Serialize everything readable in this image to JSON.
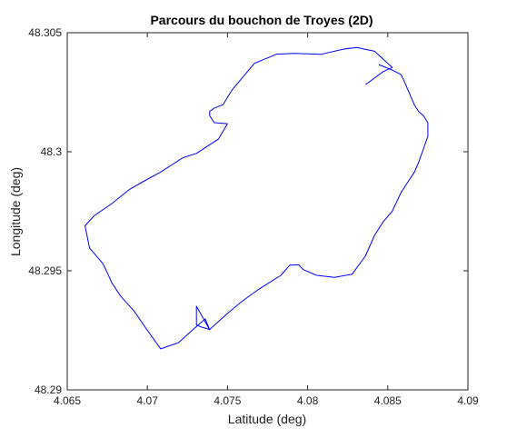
{
  "chart_data": {
    "type": "line",
    "title": "Parcours du bouchon de Troyes (2D)",
    "xlabel": "Latitude (deg)",
    "ylabel": "Longitude (deg)",
    "xlim": [
      4.065,
      4.09
    ],
    "ylim": [
      48.29,
      48.305
    ],
    "xticks": [
      4.065,
      4.07,
      4.075,
      4.08,
      4.085,
      4.09
    ],
    "xtick_labels": [
      "4.065",
      "4.07",
      "4.075",
      "4.08",
      "4.085",
      "4.09"
    ],
    "yticks": [
      48.29,
      48.295,
      48.3,
      48.305
    ],
    "ytick_labels": [
      "48.29",
      "48.295",
      "48.3",
      "48.305"
    ],
    "grid": false,
    "line_color": "#0000ff",
    "series": [
      {
        "x": [
          4.08361,
          4.08472,
          4.08528,
          4.08417,
          4.08306,
          4.08222,
          4.08083,
          4.07917,
          4.07806,
          4.07667,
          4.07528,
          4.07472,
          4.07417,
          4.07389,
          4.07389,
          4.07417,
          4.075,
          4.07444,
          4.07306,
          4.07222,
          4.07083,
          4.06972,
          4.06889,
          4.06778,
          4.06667,
          4.06611,
          4.06639,
          4.06722,
          4.0675,
          4.06778,
          4.06833,
          4.06917,
          4.07,
          4.07083,
          4.07194,
          4.07278,
          4.07361,
          4.07389,
          4.07306,
          4.07306,
          4.07333,
          4.07389,
          4.07417,
          4.075,
          4.07583,
          4.07694,
          4.07833,
          4.07889,
          4.07944,
          4.07972,
          4.08056,
          4.08167,
          4.08278,
          4.08361,
          4.08417,
          4.08472,
          4.08528,
          4.08583,
          4.08667,
          4.08694,
          4.0875,
          4.0875,
          4.08722,
          4.08694,
          4.08667,
          4.08611,
          4.08583,
          4.08528,
          4.08444
        ],
        "y": [
          48.30282,
          48.30337,
          48.30354,
          48.30422,
          48.30438,
          48.30431,
          48.30409,
          48.30413,
          48.3041,
          48.30371,
          48.30259,
          48.30198,
          48.30183,
          48.3017,
          48.30151,
          48.30122,
          48.30118,
          48.30054,
          48.29993,
          48.29975,
          48.29915,
          48.29874,
          48.29842,
          48.29782,
          48.29731,
          48.29689,
          48.29596,
          48.2953,
          48.29492,
          48.2945,
          48.29394,
          48.29331,
          48.2925,
          48.29172,
          48.29198,
          48.29249,
          48.29298,
          48.29252,
          48.29351,
          48.29272,
          48.29265,
          48.29254,
          48.29271,
          48.29321,
          48.29368,
          48.29422,
          48.29481,
          48.29524,
          48.29525,
          48.29505,
          48.29481,
          48.29472,
          48.29486,
          48.29563,
          48.29649,
          48.29707,
          48.2975,
          48.29829,
          48.29916,
          48.29958,
          48.30065,
          48.30122,
          48.30152,
          48.30168,
          48.30195,
          48.30283,
          48.30324,
          48.30343,
          48.30366
        ]
      }
    ]
  }
}
